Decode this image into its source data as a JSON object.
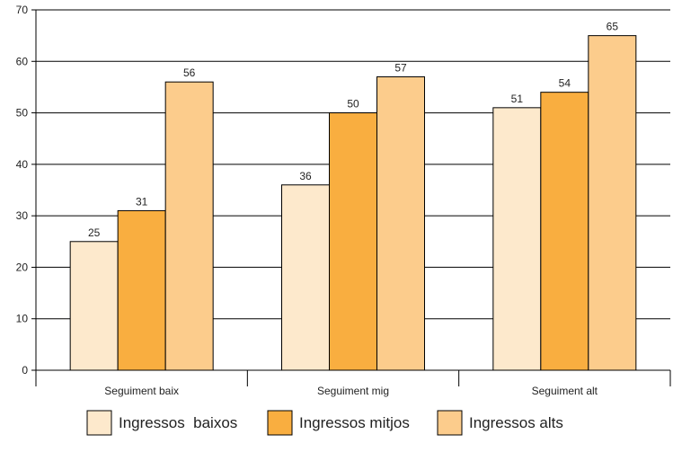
{
  "chart_data": {
    "type": "bar",
    "categories": [
      "Seguiment baix",
      "Seguiment mig",
      "Seguiment alt"
    ],
    "series": [
      {
        "name": "Ingressos  baixos",
        "values": [
          25,
          36,
          51
        ],
        "color": "#FDE9CC"
      },
      {
        "name": "Ingressos mitjos",
        "values": [
          31,
          50,
          54
        ],
        "color": "#F9AE40"
      },
      {
        "name": "Ingressos alts",
        "values": [
          56,
          57,
          65
        ],
        "color": "#FCCC8C"
      }
    ],
    "data_labels": [
      [
        "25",
        "36",
        "51"
      ],
      [
        "31",
        "50",
        "54"
      ],
      [
        "56",
        "57",
        "65"
      ]
    ],
    "title": "",
    "xlabel": "",
    "ylabel": "",
    "ylim": [
      0,
      70
    ],
    "yticks": [
      "0",
      "10",
      "20",
      "30",
      "40",
      "50",
      "60",
      "70"
    ],
    "grid": true,
    "legend_position": "bottom"
  }
}
